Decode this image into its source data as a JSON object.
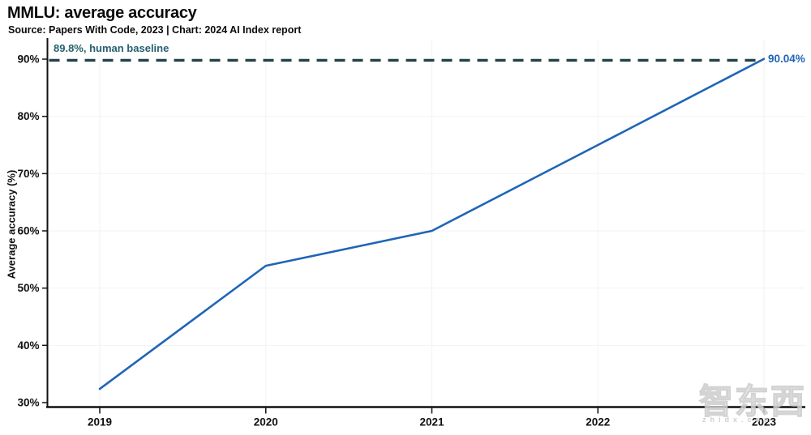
{
  "header": {
    "title": "MMLU: average accuracy",
    "subtitle": "Source: Papers With Code, 2023 | Chart: 2024 AI Index report"
  },
  "chart_data": {
    "type": "line",
    "title": "MMLU: average accuracy",
    "subtitle": "Source: Papers With Code, 2023 | Chart: 2024 AI Index report",
    "xlabel": "",
    "ylabel": "Average accuracy (%)",
    "categories": [
      "2019",
      "2020",
      "2021",
      "2022",
      "2023"
    ],
    "series": [
      {
        "name": "MMLU average accuracy",
        "values": [
          32.4,
          53.9,
          60.0,
          75.0,
          90.04
        ]
      }
    ],
    "ylim": [
      30,
      90
    ],
    "yticks": [
      30,
      40,
      50,
      60,
      70,
      80,
      90
    ],
    "ytick_labels": [
      "30%",
      "40%",
      "50%",
      "60%",
      "70%",
      "80%",
      "90%"
    ],
    "grid": true,
    "legend_position": "none",
    "baseline": {
      "value": 89.8,
      "label": "89.8%, human baseline"
    },
    "end_label": "90.04%",
    "line_color": "#1f65b7",
    "baseline_color": "#21424c",
    "baseline_label_color": "#26616f",
    "grid_color": "#f2f2f2",
    "axis_color": "#111111"
  },
  "watermark": {
    "logo": "智东西",
    "caption": "zhidx.com"
  }
}
